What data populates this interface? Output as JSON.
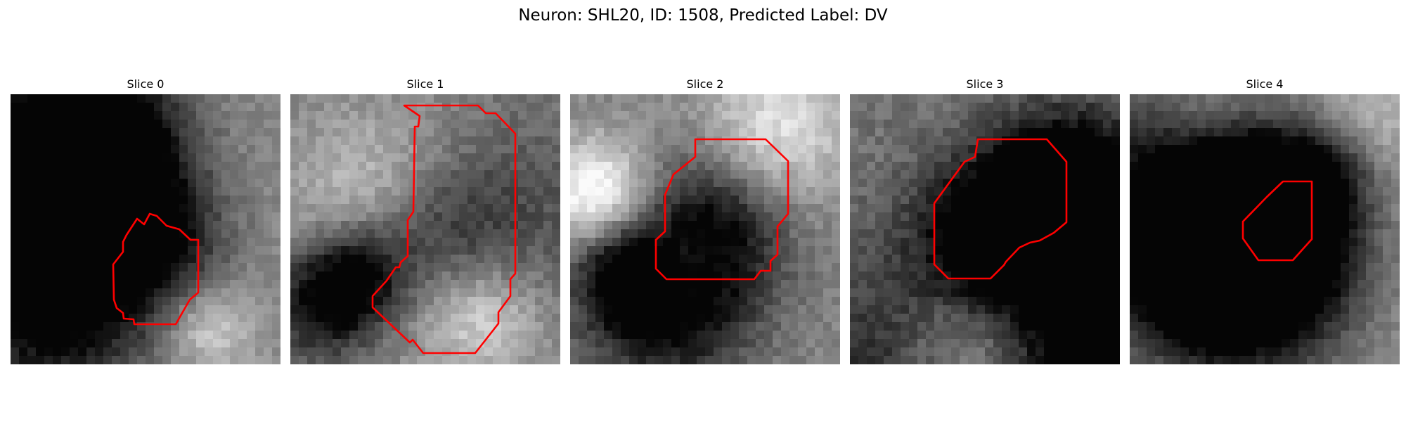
{
  "figure": {
    "title": "Neuron: SHL20, ID: 1508, Predicted Label: DV"
  },
  "colors": {
    "contour": "#ff0000",
    "background": "#ffffff"
  },
  "panels": [
    {
      "title": "Slice 0",
      "description": "grayscale tissue patch with red contour outlining a neuron",
      "seed": 11,
      "contrast": 0.55,
      "brightness": 0.55
    },
    {
      "title": "Slice 1",
      "description": "grayscale tissue patch with red contour outlining a neuron",
      "seed": 23,
      "contrast": 0.6,
      "brightness": 0.5
    },
    {
      "title": "Slice 2",
      "description": "grayscale tissue patch with red contour outlining a neuron",
      "seed": 37,
      "contrast": 0.6,
      "brightness": 0.52
    },
    {
      "title": "Slice 3",
      "description": "grayscale tissue patch with red contour outlining a neuron",
      "seed": 41,
      "contrast": 0.7,
      "brightness": 0.45
    },
    {
      "title": "Slice 4",
      "description": "grayscale tissue patch with red contour outlining a neuron",
      "seed": 53,
      "contrast": 0.5,
      "brightness": 0.62
    }
  ]
}
